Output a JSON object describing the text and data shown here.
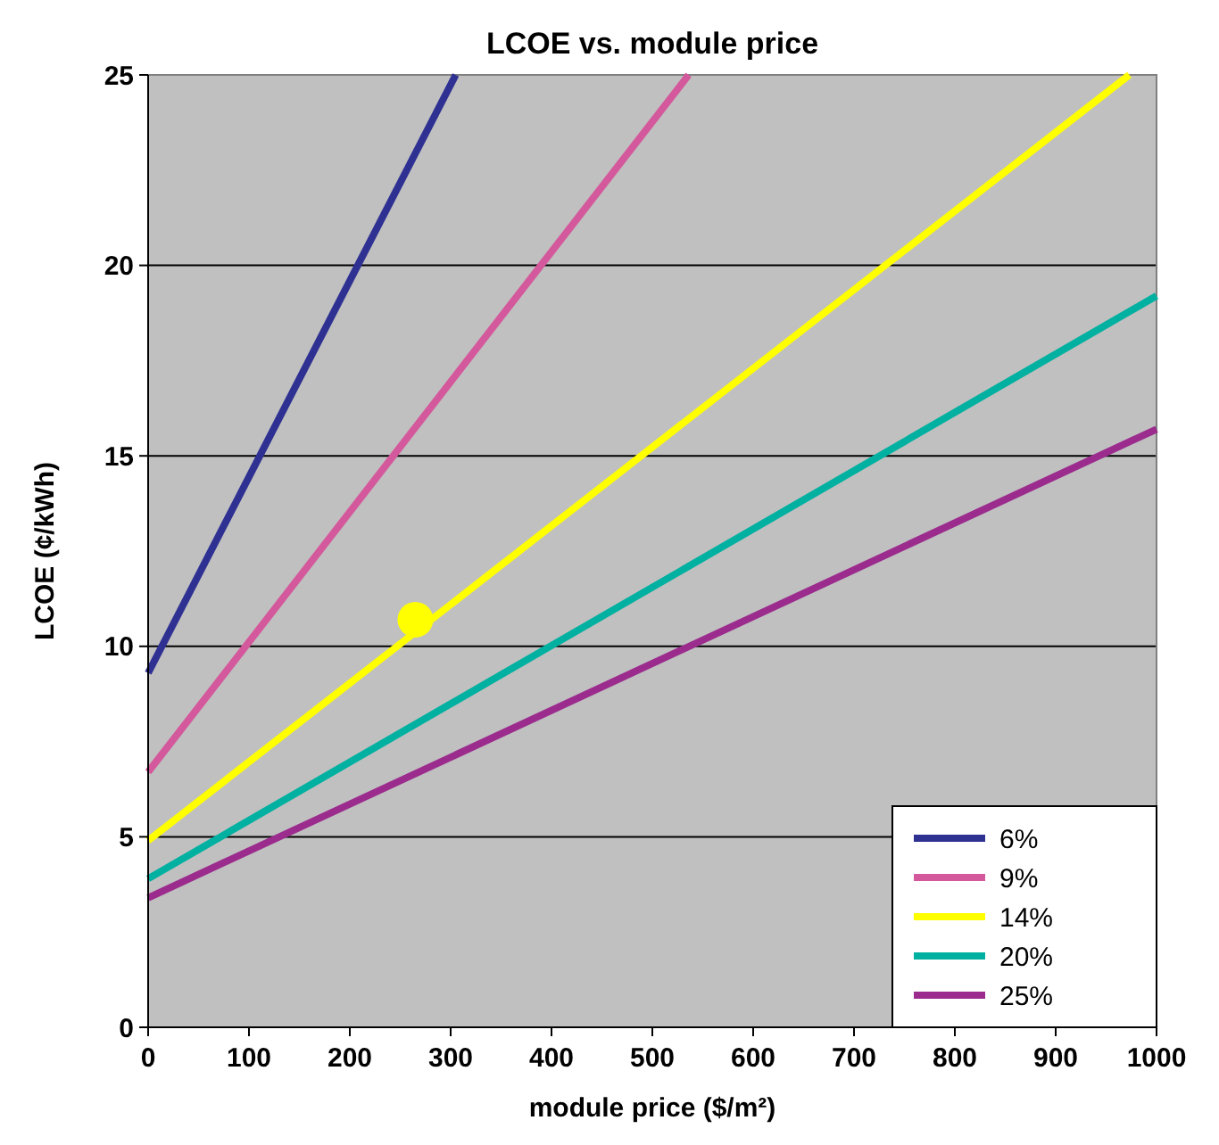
{
  "chart_data": {
    "type": "line",
    "title": "LCOE vs. module price",
    "xlabel": "module price ($/m²)",
    "ylabel": "LCOE (¢/kWh)",
    "xlim": [
      0,
      1000
    ],
    "xticks": [
      0,
      100,
      200,
      300,
      400,
      500,
      600,
      700,
      800,
      900,
      1000
    ],
    "ylim": [
      0,
      25
    ],
    "yticks": [
      0,
      5,
      10,
      15,
      20,
      25
    ],
    "grid": "y",
    "legend": "bottom right",
    "line_style": "solid",
    "series": [
      {
        "name": "6%",
        "color": "#2e3192",
        "x": [
          0,
          305
        ],
        "values": [
          9.3,
          25
        ]
      },
      {
        "name": "9%",
        "color": "#d4589c",
        "x": [
          0,
          536
        ],
        "values": [
          6.7,
          25
        ]
      },
      {
        "name": "14%",
        "color": "#ffff00",
        "x": [
          0,
          973
        ],
        "values": [
          4.9,
          25
        ]
      },
      {
        "name": "20%",
        "color": "#00b0a0",
        "x": [
          0,
          1000
        ],
        "values": [
          3.9,
          19.2
        ]
      },
      {
        "name": "25%",
        "color": "#9b2c8e",
        "x": [
          0,
          1000
        ],
        "values": [
          3.4,
          15.7
        ]
      },
      {
        "type": "scatter",
        "color": "#ffff00",
        "marker": "circle",
        "x": [
          265
        ],
        "values": [
          10.7
        ]
      }
    ]
  }
}
